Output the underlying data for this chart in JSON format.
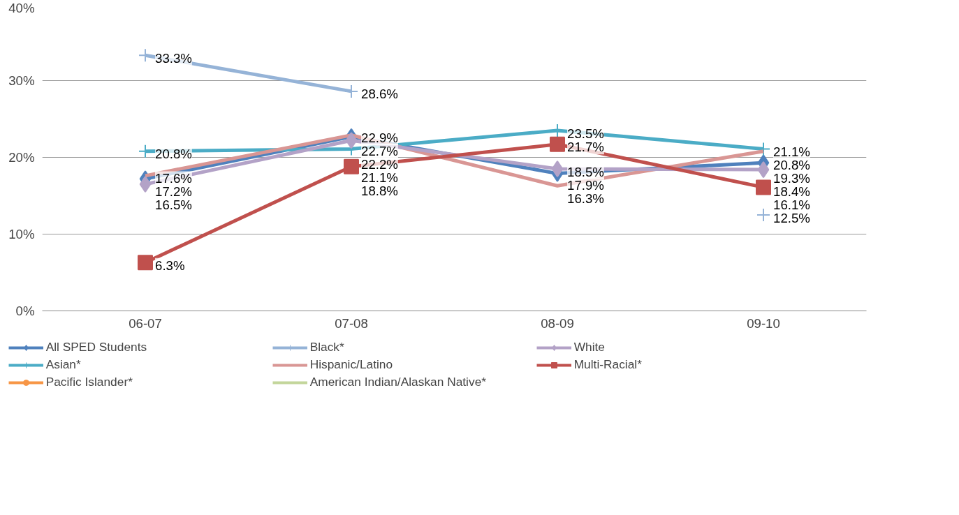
{
  "chart_data": {
    "type": "line",
    "categories": [
      "06-07",
      "07-08",
      "08-09",
      "09-10"
    ],
    "ylim": [
      0,
      40
    ],
    "yticks": [
      {
        "value": 0,
        "label": "0%"
      },
      {
        "value": 10,
        "label": "10%"
      },
      {
        "value": 20,
        "label": "20%"
      },
      {
        "value": 30,
        "label": "30%"
      },
      {
        "value": 40,
        "label": "40%"
      }
    ],
    "grid": "y",
    "legend": "bottom",
    "series": [
      {
        "name": "All SPED Students",
        "color": "#4f81bd",
        "marker": "diamond",
        "values": [
          17.2,
          22.7,
          17.9,
          19.3
        ],
        "value_labels": [
          "17.2%",
          "22.7%",
          "17.9%",
          "19.3%"
        ]
      },
      {
        "name": "Asian*",
        "color": "#4bacc6",
        "marker": "cross",
        "values": [
          20.8,
          21.1,
          23.5,
          21.1
        ],
        "value_labels": [
          "20.8%",
          "21.1%",
          "23.5%",
          "21.1%"
        ]
      },
      {
        "name": "Pacific Islander*",
        "color": "#f79646",
        "marker": "circle",
        "values": [
          null,
          null,
          null,
          null
        ]
      },
      {
        "name": "Black*",
        "color": "#95b3d7",
        "marker": "cross",
        "values": [
          33.3,
          28.6,
          null,
          12.5
        ],
        "value_labels": [
          "33.3%",
          "28.6%",
          null,
          "12.5%"
        ]
      },
      {
        "name": "Hispanic/Latino",
        "color": "#d99694",
        "marker": "none",
        "values": [
          17.6,
          22.9,
          16.3,
          20.8
        ],
        "value_labels": [
          "17.6%",
          "22.9%",
          "16.3%",
          "20.8%"
        ]
      },
      {
        "name": "American Indian/Alaskan Native*",
        "color": "#c3d69b",
        "marker": "none",
        "values": [
          null,
          null,
          null,
          null
        ]
      },
      {
        "name": "White",
        "color": "#b3a2c7",
        "marker": "diamond",
        "values": [
          16.5,
          22.2,
          18.5,
          18.4
        ],
        "value_labels": [
          "16.5%",
          "22.2%",
          "18.5%",
          "18.4%"
        ]
      },
      {
        "name": "Multi-Racial*",
        "color": "#c0504d",
        "marker": "square",
        "values": [
          6.3,
          18.8,
          21.7,
          16.1
        ],
        "value_labels": [
          "6.3%",
          "18.8%",
          "21.7%",
          "16.1%"
        ]
      }
    ]
  }
}
